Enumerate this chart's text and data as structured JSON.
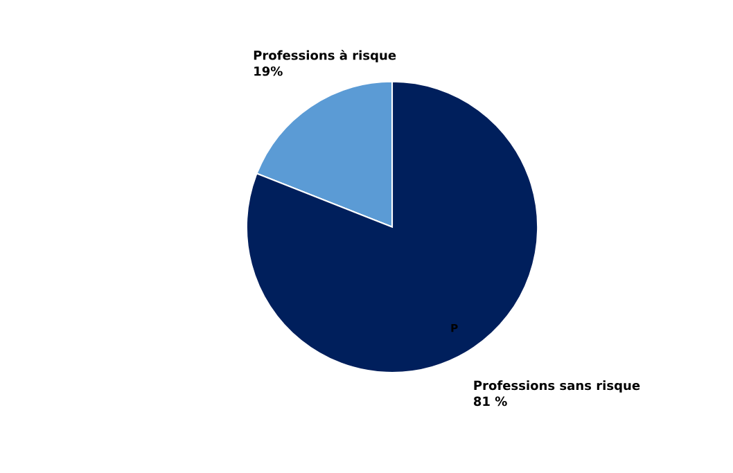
{
  "chart_data": {
    "type": "pie",
    "categories": [
      "Professions à risque",
      "Professions sans risque"
    ],
    "values": [
      19,
      81
    ],
    "colors": [
      "#5b9bd5",
      "#001f5c"
    ],
    "value_labels": [
      "19%",
      "81 %"
    ],
    "annotations": [
      "P"
    ]
  }
}
